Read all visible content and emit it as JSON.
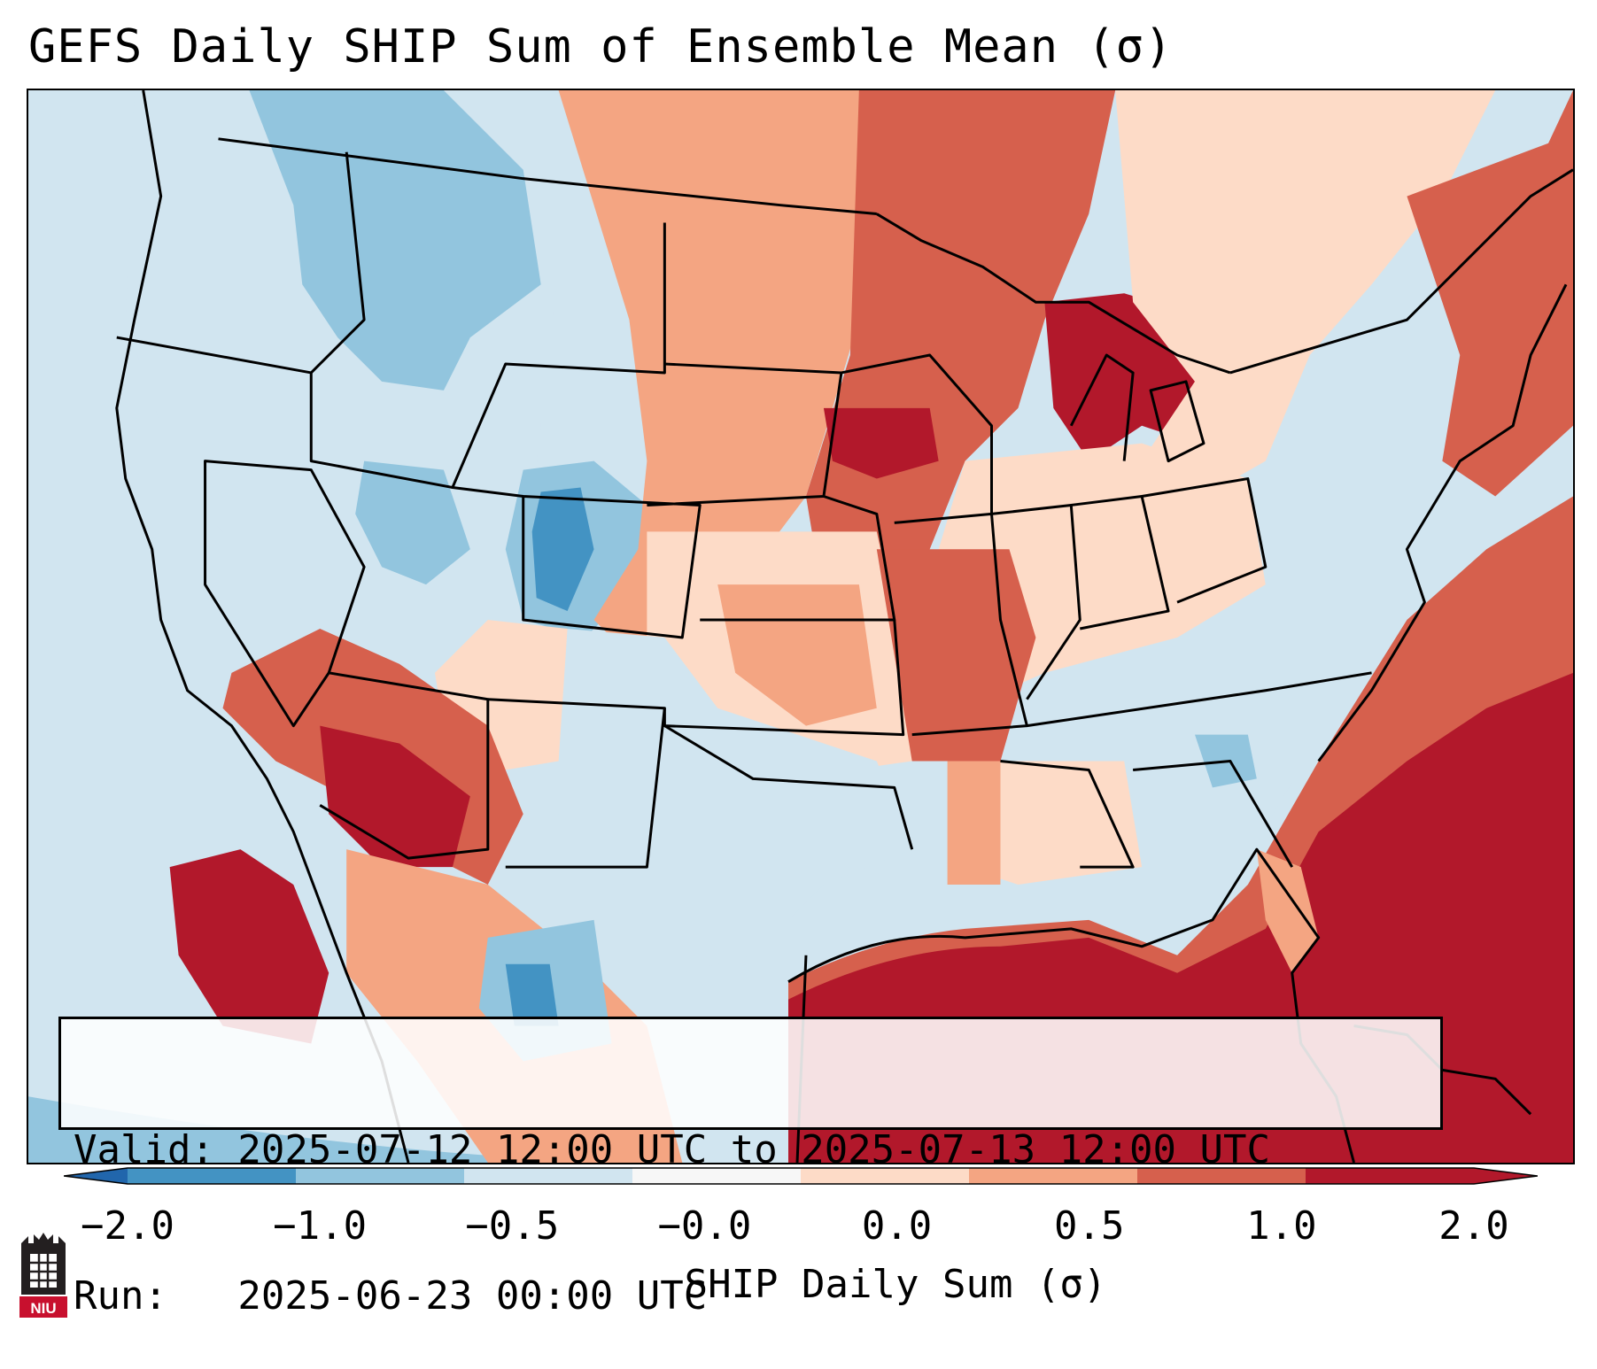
{
  "title": "GEFS Daily SHIP Sum of Ensemble Mean (σ)",
  "info": {
    "valid": "Valid: 2025-07-12 12:00 UTC to 2025-07-13 12:00 UTC",
    "run": "Run:   2025-06-23 00:00 UTC"
  },
  "colorbar": {
    "label": "SHIP Daily Sum (σ)",
    "ticks": [
      "−2.0",
      "−1.0",
      "−0.5",
      "−0.0",
      "0.0",
      "0.5",
      "1.0",
      "2.0"
    ],
    "colors": [
      "#4393c3",
      "#92c5de",
      "#d1e5f0",
      "#f7f7f7",
      "#fddbc7",
      "#f4a582",
      "#d6604d",
      "#b2182b"
    ],
    "extend_low_color": "#2166ac",
    "extend_high_color": "#b2182b"
  },
  "logo": {
    "text": "NIU"
  },
  "colors": {
    "map_background": "#d1e5f0",
    "border": "#000000"
  }
}
